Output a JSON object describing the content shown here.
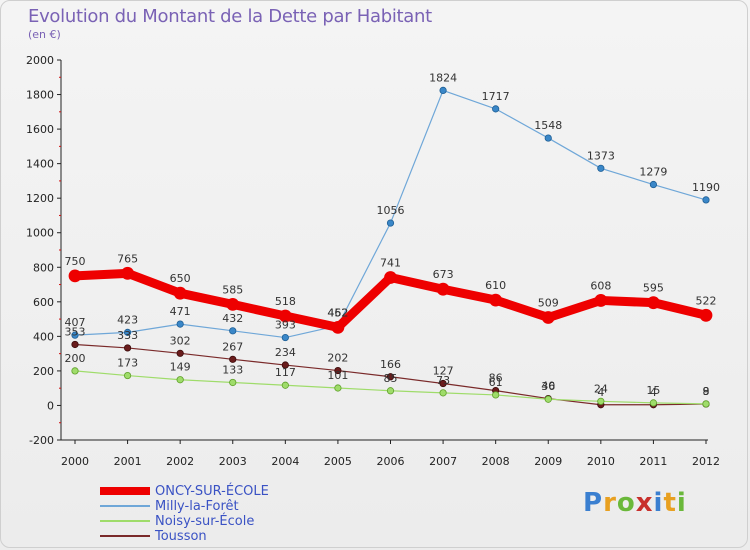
{
  "title": "Evolution du Montant de la Dette par Habitant",
  "subtitle": "(en €)",
  "logo": {
    "text": "Proxiti",
    "colors": [
      "#3a7fd0",
      "#e8a020",
      "#6ab83a",
      "#c8302c",
      "#3a7fd0",
      "#e8a020",
      "#6ab83a"
    ]
  },
  "chart_data": {
    "type": "line",
    "x": [
      "2000",
      "2001",
      "2002",
      "2003",
      "2004",
      "2005",
      "2006",
      "2007",
      "2008",
      "2009",
      "2010",
      "2011",
      "2012"
    ],
    "ylim": [
      -200,
      2000
    ],
    "yticks": [
      "-200",
      "0",
      "200",
      "400",
      "600",
      "800",
      "1000",
      "1200",
      "1400",
      "1600",
      "1800",
      "2000"
    ],
    "grid": false,
    "legend": "bottom-left",
    "series": [
      {
        "name": "ONCY-SUR-ÉCOLE",
        "color": "#ee0000",
        "values": [
          750,
          765,
          650,
          585,
          518,
          452,
          741,
          673,
          610,
          509,
          608,
          595,
          522
        ],
        "labels": [
          "750",
          "765",
          "650",
          "585",
          "518",
          "452",
          "741",
          "673",
          "610",
          "509",
          "608",
          "595",
          "522"
        ]
      },
      {
        "name": "Milly-la-Forêt",
        "color": "#6fa7d8",
        "values": [
          407,
          423,
          471,
          432,
          393,
          462,
          1056,
          1824,
          1717,
          1548,
          1373,
          1279,
          1190
        ],
        "labels": [
          "407",
          "423",
          "471",
          "432",
          "393",
          "462",
          "1056",
          "1824",
          "1717",
          "1548",
          "1373",
          "1279",
          "1190"
        ]
      },
      {
        "name": "Noisy-sur-École",
        "color": "#9fdc6a",
        "values": [
          200,
          173,
          149,
          133,
          117,
          101,
          85,
          73,
          61,
          36,
          24,
          15,
          9
        ],
        "labels": [
          "200",
          "173",
          "149",
          "133",
          "117",
          "101",
          "85",
          "73",
          "61",
          "36",
          "24",
          "15",
          "9"
        ]
      },
      {
        "name": "Tousson",
        "color": "#7a2a2a",
        "values": [
          353,
          333,
          302,
          267,
          234,
          202,
          166,
          127,
          86,
          40,
          4,
          4,
          8
        ],
        "labels": [
          "353",
          "333",
          "302",
          "267",
          "234",
          "202",
          "166",
          "127",
          "86",
          "40",
          "4",
          "4",
          "8"
        ]
      }
    ]
  }
}
